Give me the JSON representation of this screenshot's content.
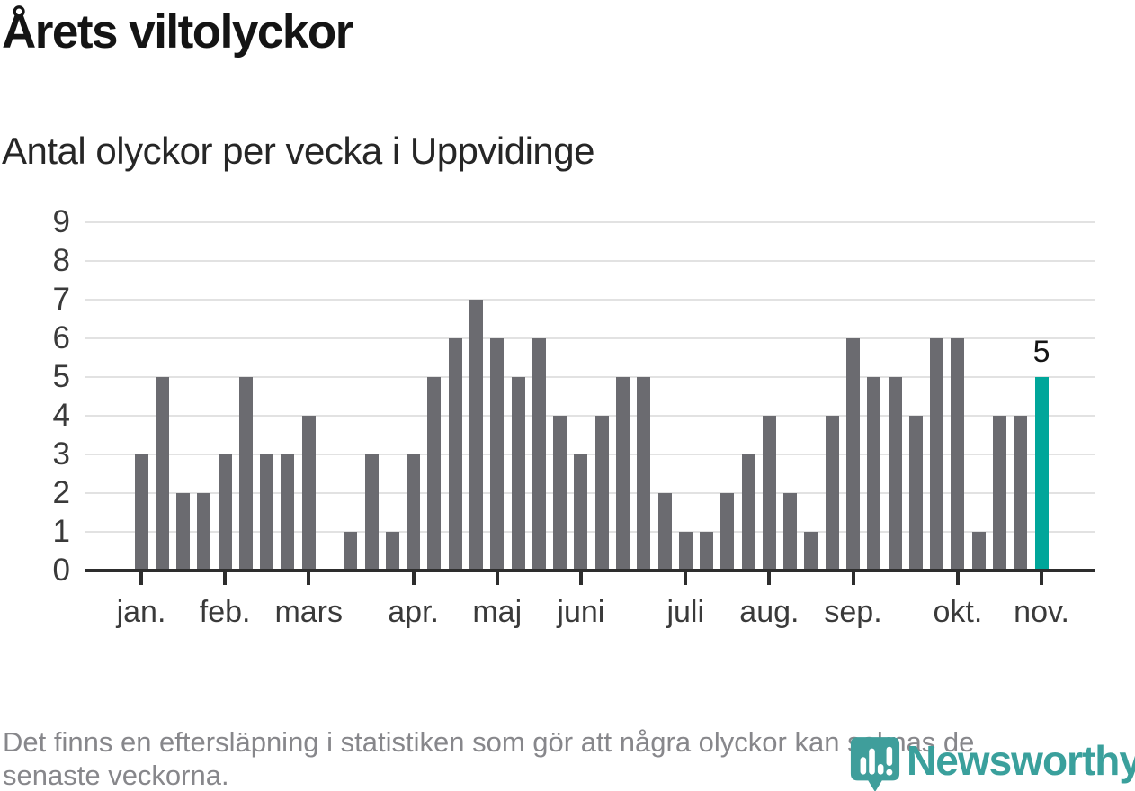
{
  "header": {
    "title": "Årets viltolyckor",
    "subtitle": "Antal olyckor per vecka i Uppvidinge"
  },
  "chart_data": {
    "type": "bar",
    "title": "Årets viltolyckor",
    "subtitle": "Antal olyckor per vecka i Uppvidinge",
    "x_unit": "vecka",
    "values": [
      3,
      5,
      2,
      2,
      3,
      5,
      3,
      3,
      4,
      0,
      1,
      3,
      1,
      3,
      5,
      6,
      7,
      6,
      5,
      6,
      4,
      3,
      4,
      5,
      5,
      2,
      1,
      1,
      2,
      3,
      4,
      2,
      1,
      4,
      6,
      5,
      5,
      4,
      6,
      6,
      1,
      4,
      4,
      5
    ],
    "months": [
      {
        "label": "jan.",
        "week": 0
      },
      {
        "label": "feb.",
        "week": 4
      },
      {
        "label": "mars",
        "week": 8
      },
      {
        "label": "apr.",
        "week": 13
      },
      {
        "label": "maj",
        "week": 17
      },
      {
        "label": "juni",
        "week": 21
      },
      {
        "label": "juli",
        "week": 26
      },
      {
        "label": "aug.",
        "week": 30
      },
      {
        "label": "sep.",
        "week": 34
      },
      {
        "label": "okt.",
        "week": 39
      },
      {
        "label": "nov.",
        "week": 43
      }
    ],
    "ylim": [
      0,
      9
    ],
    "yticks": [
      0,
      1,
      2,
      3,
      4,
      5,
      6,
      7,
      8,
      9
    ],
    "grid": "horizontal",
    "legend": "none",
    "highlight": {
      "index": 43,
      "value": 5,
      "label": "5",
      "color": "#00a69a"
    },
    "bar_color": "#6b6b70",
    "axis_color": "#2d2d2d",
    "grid_color": "#e2e2e2"
  },
  "footer": {
    "line1": "Det finns en eftersläpning i statistiken som gör att några olyckor kan saknas de",
    "line2": "senaste veckorna."
  },
  "logo": {
    "wordmark": "Newsworthy",
    "color": "#3aa09c"
  }
}
